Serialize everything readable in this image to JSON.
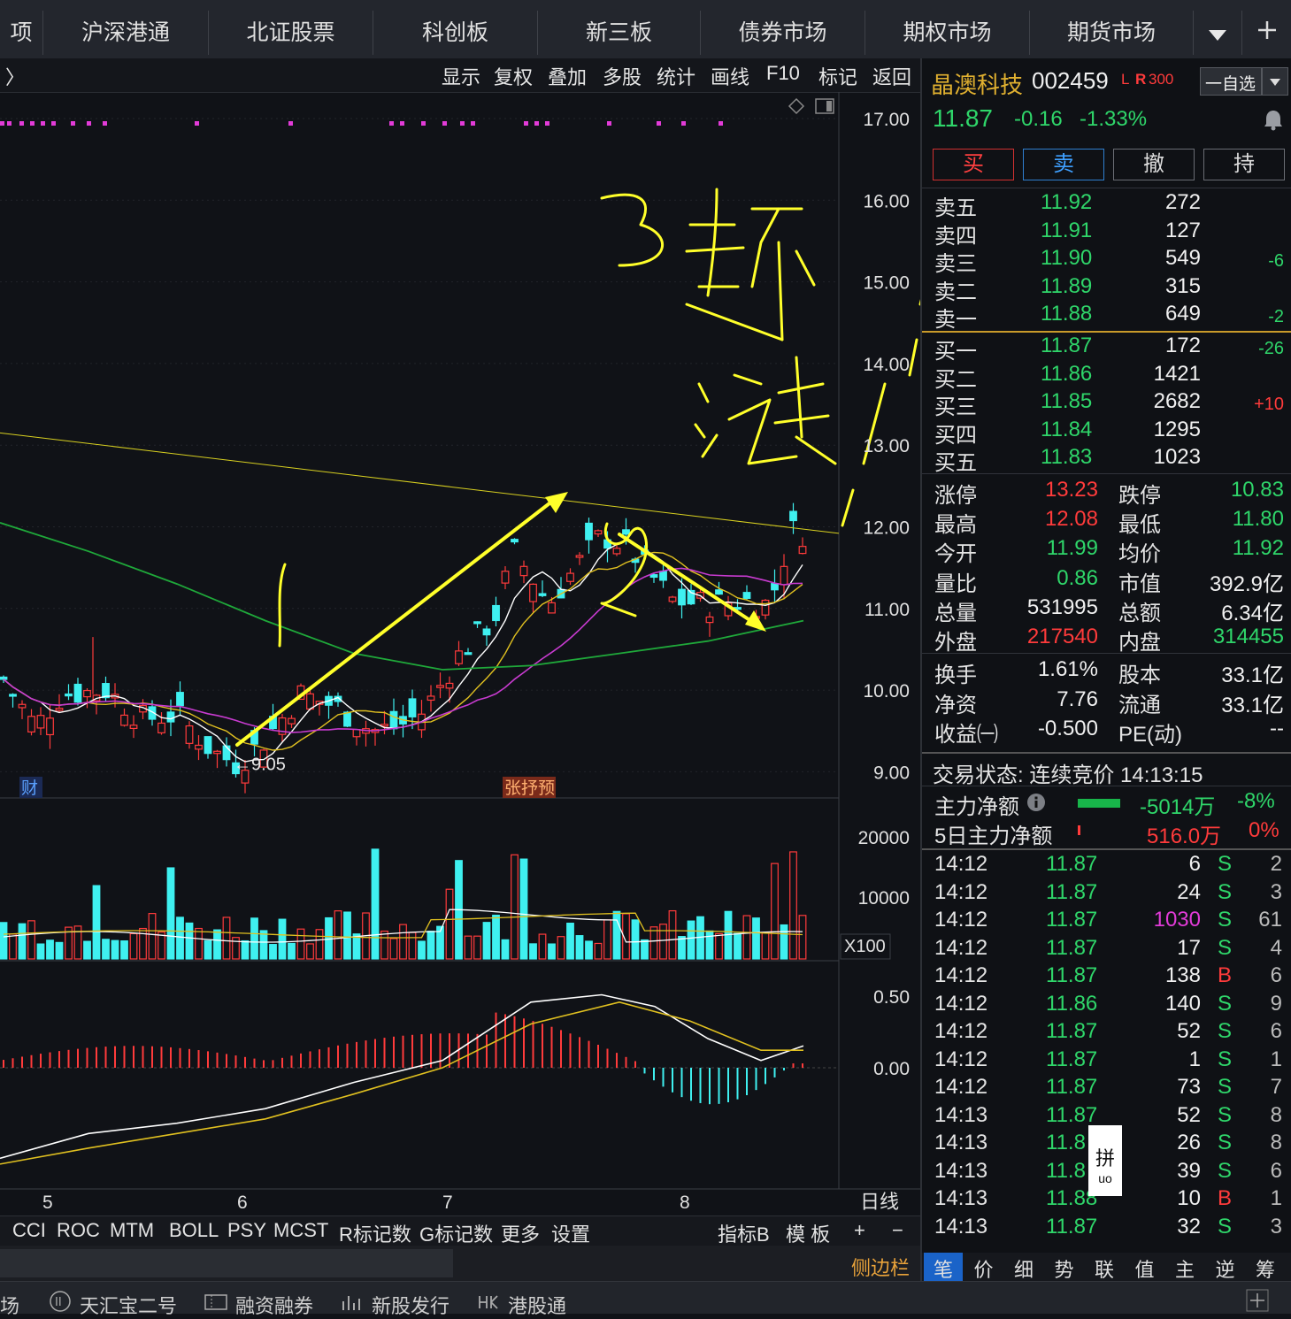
{
  "nav": {
    "items": [
      "项",
      "沪深港通",
      "北证股票",
      "科创板",
      "新三板",
      "债券市场",
      "期权市场",
      "期货市场"
    ],
    "dropdown_icon": "caret-down-icon",
    "add_icon": "plus-icon"
  },
  "toolbar": {
    "back_glyph": "〉",
    "items": [
      "显示",
      "复权",
      "叠加",
      "多股",
      "统计",
      "画线",
      "F10",
      "标记",
      "返回"
    ]
  },
  "chart": {
    "price_axis": [
      "17.00",
      "16.00",
      "15.00",
      "14.00",
      "13.00",
      "12.00",
      "11.00",
      "10.00",
      "9.00"
    ],
    "low_marker": "←9.05",
    "tag_cai": "财",
    "tag_limit": "张抒预",
    "volume_axis": [
      "20000",
      "10000"
    ],
    "volume_unit": "X100",
    "macd_axis": [
      "0.50",
      "0.00"
    ],
    "month_labels": [
      "5",
      "6",
      "7",
      "8"
    ],
    "period": "日线",
    "colors": {
      "up": "#ff3b3b",
      "down": "#3ff0f0",
      "ma5": "#ffffff",
      "ma10": "#e0c020",
      "ma20": "#c83bd0",
      "ma60": "#1fa83a",
      "annotation": "#ffff2a"
    }
  },
  "chart_data": {
    "type": "candlestick",
    "x_labels": [
      "5",
      "6",
      "7",
      "8"
    ],
    "price_range": [
      9.0,
      17.0
    ],
    "price_low": 9.05,
    "last_close": 11.87,
    "volume_range": [
      0,
      20000
    ],
    "volume_unit": "X100",
    "macd_range": [
      -0.3,
      0.5
    ]
  },
  "indicator_tabs": [
    "CCI",
    "ROC",
    "MTM",
    "BOLL",
    "PSY",
    "MCST",
    "R标记数",
    "G标记数",
    "更多",
    "设置"
  ],
  "indicator_right": [
    "指标B",
    "模 板",
    "+",
    "−"
  ],
  "sidebar_toggle": "侧边栏",
  "stock": {
    "name": "晶澳科技",
    "code": "002459",
    "badges": [
      "L",
      "R",
      "300"
    ],
    "watch_label": "一自选",
    "price": "11.87",
    "change": "-0.16",
    "change_pct": "-1.33%",
    "bell_icon": "bell-icon"
  },
  "trade_buttons": [
    "买",
    "卖",
    "撤",
    "持"
  ],
  "order_book": {
    "asks": [
      {
        "label": "卖五",
        "price": "11.92",
        "vol": "272",
        "delta": ""
      },
      {
        "label": "卖四",
        "price": "11.91",
        "vol": "127",
        "delta": ""
      },
      {
        "label": "卖三",
        "price": "11.90",
        "vol": "549",
        "delta": "-6"
      },
      {
        "label": "卖二",
        "price": "11.89",
        "vol": "315",
        "delta": ""
      },
      {
        "label": "卖一",
        "price": "11.88",
        "vol": "649",
        "delta": "-2"
      }
    ],
    "bids": [
      {
        "label": "买一",
        "price": "11.87",
        "vol": "172",
        "delta": "-26"
      },
      {
        "label": "买二",
        "price": "11.86",
        "vol": "1421",
        "delta": ""
      },
      {
        "label": "买三",
        "price": "11.85",
        "vol": "2682",
        "delta": "+10"
      },
      {
        "label": "买四",
        "price": "11.84",
        "vol": "1295",
        "delta": ""
      },
      {
        "label": "买五",
        "price": "11.83",
        "vol": "1023",
        "delta": ""
      }
    ]
  },
  "stats": [
    {
      "l1": "涨停",
      "v1": "13.23",
      "c1": "red",
      "l2": "跌停",
      "v2": "10.83",
      "c2": "green"
    },
    {
      "l1": "最高",
      "v1": "12.08",
      "c1": "red",
      "l2": "最低",
      "v2": "11.80",
      "c2": "green"
    },
    {
      "l1": "今开",
      "v1": "11.99",
      "c1": "green",
      "l2": "均价",
      "v2": "11.92",
      "c2": "green"
    },
    {
      "l1": "量比",
      "v1": "0.86",
      "c1": "green",
      "l2": "市值",
      "v2": "392.9亿",
      "c2": "white"
    },
    {
      "l1": "总量",
      "v1": "531995",
      "c1": "white",
      "l2": "总额",
      "v2": "6.34亿",
      "c2": "white"
    },
    {
      "l1": "外盘",
      "v1": "217540",
      "c1": "red",
      "l2": "内盘",
      "v2": "314455",
      "c2": "green"
    }
  ],
  "stats2": [
    {
      "l1": "换手",
      "v1": "1.61%",
      "l2": "股本",
      "v2": "33.1亿"
    },
    {
      "l1": "净资",
      "v1": "7.76",
      "l2": "流通",
      "v2": "33.1亿"
    },
    {
      "l1": "收益㈠",
      "v1": "-0.500",
      "l2": "PE(动)",
      "v2": "--"
    }
  ],
  "trade_status": "交易状态: 连续竞价 14:13:15",
  "main_flow": {
    "label": "主力净额",
    "info_icon": "info-icon",
    "value": "-5014万",
    "pct": "-8%"
  },
  "main_flow5": {
    "label": "5日主力净额",
    "value": "516.0万",
    "pct": "0%"
  },
  "ticks": [
    {
      "t": "14:12",
      "p": "11.87",
      "v": "6",
      "s": "S",
      "n": "2",
      "vc": "white"
    },
    {
      "t": "14:12",
      "p": "11.87",
      "v": "24",
      "s": "S",
      "n": "3",
      "vc": "white"
    },
    {
      "t": "14:12",
      "p": "11.87",
      "v": "1030",
      "s": "S",
      "n": "61",
      "vc": "mag"
    },
    {
      "t": "14:12",
      "p": "11.87",
      "v": "17",
      "s": "S",
      "n": "4",
      "vc": "white"
    },
    {
      "t": "14:12",
      "p": "11.87",
      "v": "138",
      "s": "B",
      "n": "6",
      "vc": "white"
    },
    {
      "t": "14:12",
      "p": "11.86",
      "v": "140",
      "s": "S",
      "n": "9",
      "vc": "white"
    },
    {
      "t": "14:12",
      "p": "11.87",
      "v": "52",
      "s": "S",
      "n": "6",
      "vc": "white"
    },
    {
      "t": "14:12",
      "p": "11.87",
      "v": "1",
      "s": "S",
      "n": "1",
      "vc": "white"
    },
    {
      "t": "14:12",
      "p": "11.87",
      "v": "73",
      "s": "S",
      "n": "7",
      "vc": "white"
    },
    {
      "t": "14:13",
      "p": "11.87",
      "v": "52",
      "s": "S",
      "n": "8",
      "vc": "white"
    },
    {
      "t": "14:13",
      "p": "11.8",
      "v": "26",
      "s": "S",
      "n": "8",
      "vc": "white"
    },
    {
      "t": "14:13",
      "p": "11.8",
      "v": "39",
      "s": "S",
      "n": "6",
      "vc": "white"
    },
    {
      "t": "14:13",
      "p": "11.88",
      "v": "10",
      "s": "B",
      "n": "1",
      "vc": "white"
    },
    {
      "t": "14:13",
      "p": "11.87",
      "v": "32",
      "s": "S",
      "n": "3",
      "vc": "white"
    }
  ],
  "ime_popup": {
    "char": "拼",
    "sub": "uo"
  },
  "right_tabs": [
    "笔",
    "价",
    "细",
    "势",
    "联",
    "值",
    "主",
    "逆",
    "筹"
  ],
  "footer": [
    "场",
    "天汇宝二号",
    "融资融券",
    "新股发行",
    "港股通"
  ],
  "footer_icons": [
    "circle-ii-icon",
    "ticket-icon",
    "bars-icon",
    "hk-icon"
  ]
}
